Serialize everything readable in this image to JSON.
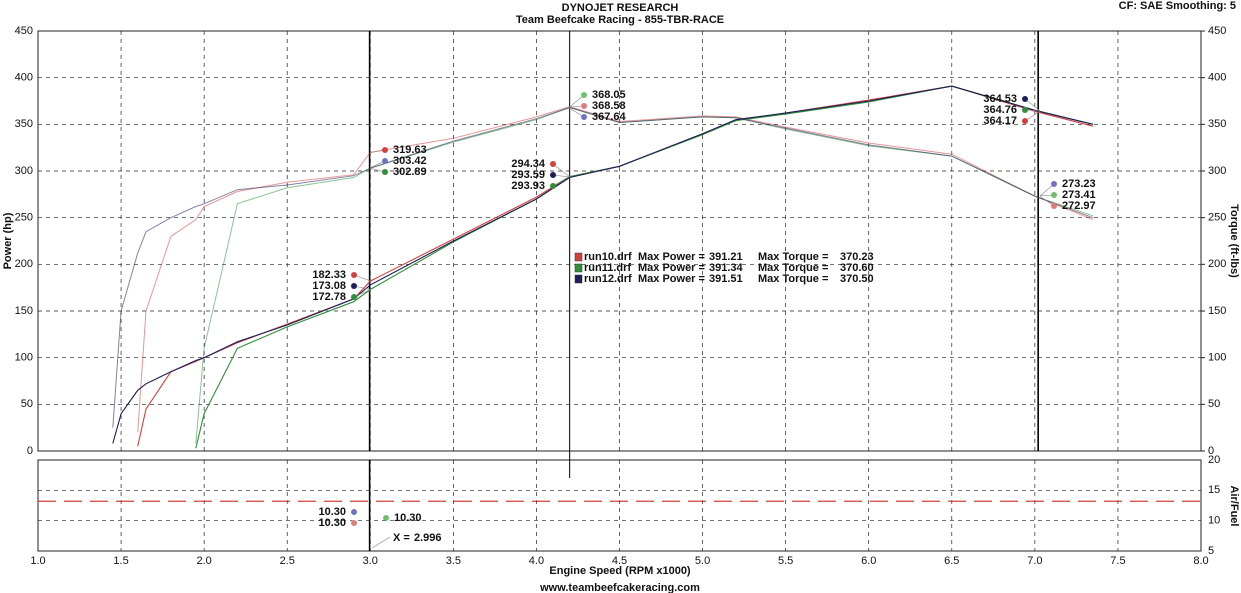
{
  "chart_data": {
    "type": "line",
    "title": "DYNOJET RESEARCH",
    "subtitle": "Team Beefcake Racing - 855-TBR-RACE",
    "corner_note": "CF: SAE  Smoothing: 5",
    "ylabel": "Power (hp)",
    "y2label": "Torque (ft-lbs)",
    "afr_label": "Air/Fuel",
    "xlabel": "Engine Speed (RPM x1000)",
    "footer": "www.teambeefcakeracing.com",
    "xlim": [
      1.0,
      8.0
    ],
    "xticks": [
      {
        "value": 1,
        "label": "1.0"
      },
      1.5,
      {
        "value": 2,
        "label": "2.0"
      },
      2.5,
      {
        "value": 3,
        "label": "3.0"
      },
      3.5,
      {
        "value": 4,
        "label": "4.0"
      },
      4.5,
      {
        "value": 5,
        "label": "5.0"
      },
      5.5,
      {
        "value": 6,
        "label": "6.0"
      },
      6.5,
      {
        "value": 7,
        "label": "7.0"
      },
      7.5,
      {
        "value": 8,
        "label": "8.0"
      }
    ],
    "ylim": [
      0,
      450
    ],
    "yticks": [
      0,
      50,
      100,
      150,
      200,
      250,
      300,
      350,
      400,
      450
    ],
    "y2lim": [
      0,
      450
    ],
    "y2ticks": [
      0,
      50,
      100,
      150,
      200,
      250,
      300,
      350,
      400,
      450
    ],
    "afr_lim": [
      5,
      20
    ],
    "afr_ticks": [
      5,
      10,
      15,
      20
    ],
    "afr_reference": 13.2,
    "grid": true,
    "x": [
      1.45,
      1.5,
      1.6,
      1.65,
      1.8,
      1.95,
      2.0,
      2.2,
      2.5,
      2.9,
      3.0,
      3.5,
      4.0,
      4.2,
      4.5,
      5.0,
      5.2,
      5.5,
      6.0,
      6.5,
      7.0,
      7.35
    ],
    "max_power_text": "Max Power =",
    "max_torque_text": "Max Torque =",
    "series": [
      {
        "name": "run10.drf",
        "color": "#d2403f",
        "max_power": 391.21,
        "max_torque": 370.23,
        "power": [
          null,
          null,
          5,
          45,
          85,
          96,
          100,
          116,
          136,
          163,
          182,
          227,
          272,
          294,
          305,
          340,
          354,
          362,
          376,
          391,
          364,
          348
        ],
        "torque": [
          null,
          null,
          20,
          150,
          230,
          248,
          262,
          278,
          288,
          296,
          320,
          335,
          358,
          369,
          353,
          359,
          358,
          347,
          330,
          318,
          273,
          248
        ]
      },
      {
        "name": "run11.drf",
        "color": "#2f8f3a",
        "max_power": 391.34,
        "max_torque": 370.6,
        "max_torque_label": "370.60",
        "power": [
          null,
          null,
          null,
          null,
          null,
          3,
          40,
          110,
          133,
          160,
          173,
          224,
          270,
          294,
          305,
          339,
          354,
          361,
          374,
          391,
          365,
          350
        ],
        "torque": [
          null,
          null,
          null,
          null,
          null,
          8,
          110,
          265,
          282,
          293,
          303,
          331,
          355,
          368,
          352,
          358,
          357,
          345,
          327,
          316,
          273,
          252
        ]
      },
      {
        "name": "run12.drf",
        "color": "#1c1f5a",
        "max_power": 391.51,
        "max_torque": 370.5,
        "max_torque_label": "370.50",
        "power": [
          8,
          40,
          65,
          72,
          85,
          97,
          100,
          117,
          135,
          163,
          178,
          225,
          270,
          293,
          305,
          340,
          355,
          362,
          375,
          391,
          365,
          350
        ],
        "torque": [
          25,
          150,
          212,
          235,
          250,
          262,
          265,
          280,
          285,
          295,
          303,
          332,
          356,
          368,
          352,
          358,
          357,
          346,
          328,
          316,
          273,
          250
        ]
      }
    ],
    "cursor_text": "X =",
    "cursors": [
      2.996,
      4.2,
      7.02
    ],
    "readouts": [
      {
        "hp": [
          182.33,
          173.08,
          172.78
        ],
        "hp_colors": [
          "#d2403f",
          "#1c1f5a",
          "#2f8f3a"
        ],
        "torque": [
          319.63,
          303.42,
          302.89
        ],
        "torque_colors": [
          "#d2403f",
          "#6f74c8",
          "#2f8f3a"
        ]
      },
      {
        "hp": [
          294.34,
          293.59,
          293.93
        ],
        "hp_colors": [
          "#d2403f",
          "#1c1f5a",
          "#2f8f3a"
        ],
        "torque": [
          368.05,
          368.58,
          367.64
        ],
        "torque_colors": [
          "#6fbf6f",
          "#e07b7b",
          "#6f74c8"
        ]
      },
      {
        "hp": [
          364.53,
          364.76,
          364.17
        ],
        "hp_colors": [
          "#1c1f5a",
          "#2f8f3a",
          "#d2403f"
        ],
        "torque": [
          273.23,
          273.41,
          272.97
        ],
        "torque_colors": [
          "#6f74c8",
          "#6fbf6f",
          "#e07b7b"
        ]
      }
    ],
    "afr_readout": [
      10.3,
      10.3,
      10.3
    ],
    "afr_readout_labels": [
      "10.30",
      "10.30",
      "10.30"
    ]
  }
}
